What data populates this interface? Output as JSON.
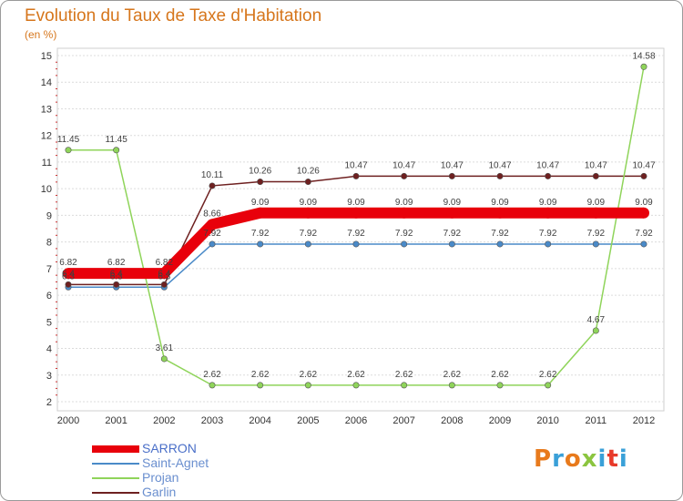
{
  "chart_data": {
    "type": "line",
    "title": "Evolution du Taux de Taxe d'Habitation",
    "subtitle": "(en %)",
    "xlabel": "",
    "ylabel": "",
    "x": [
      "2000",
      "2001",
      "2002",
      "2003",
      "2004",
      "2005",
      "2006",
      "2007",
      "2008",
      "2009",
      "2010",
      "2011",
      "2012"
    ],
    "ylim": [
      2,
      15
    ],
    "yticks": [
      "2",
      "3",
      "4",
      "5",
      "6",
      "7",
      "8",
      "9",
      "10",
      "11",
      "12",
      "13",
      "14",
      "15"
    ],
    "grid": "horizontal",
    "legend_position": "bottom-left",
    "series": [
      {
        "name": "SARRON",
        "color": "#e8000b",
        "values": [
          6.82,
          6.82,
          6.82,
          8.66,
          9.09,
          9.09,
          9.09,
          9.09,
          9.09,
          9.09,
          9.09,
          9.09,
          9.09
        ],
        "labels": [
          "6.82",
          "6.82",
          "6.82",
          "8.66",
          "9.09",
          "9.09",
          "9.09",
          "9.09",
          "9.09",
          "9.09",
          "9.09",
          "9.09",
          "9.09"
        ]
      },
      {
        "name": "Saint-Agnet",
        "color": "#4a8ac8",
        "values": [
          6.3,
          6.3,
          6.3,
          7.92,
          7.92,
          7.92,
          7.92,
          7.92,
          7.92,
          7.92,
          7.92,
          7.92,
          7.92
        ],
        "labels": [
          "6.3",
          "6.3",
          "6.3",
          "7.92",
          "7.92",
          "7.92",
          "7.92",
          "7.92",
          "7.92",
          "7.92",
          "7.92",
          "7.92",
          "7.92"
        ]
      },
      {
        "name": "Projan",
        "color": "#8fd45a",
        "values": [
          11.45,
          11.45,
          3.61,
          2.62,
          2.62,
          2.62,
          2.62,
          2.62,
          2.62,
          2.62,
          2.62,
          4.67,
          14.58
        ],
        "labels": [
          "11.45",
          "11.45",
          "3.61",
          "2.62",
          "2.62",
          "2.62",
          "2.62",
          "2.62",
          "2.62",
          "2.62",
          "2.62",
          "4.67",
          "14.58"
        ]
      },
      {
        "name": "Garlin",
        "color": "#6e2020",
        "values": [
          6.4,
          6.4,
          6.4,
          10.11,
          10.26,
          10.26,
          10.47,
          10.47,
          10.47,
          10.47,
          10.47,
          10.47,
          10.47
        ],
        "labels": [
          "6.4",
          "6.4",
          "6.4",
          "10.11",
          "10.26",
          "10.26",
          "10.47",
          "10.47",
          "10.47",
          "10.47",
          "10.47",
          "10.47",
          "10.47"
        ]
      }
    ]
  },
  "logo": {
    "text": "Proxiti",
    "letter_colors": [
      "#e87a1c",
      "#3aa0d8",
      "#e87a1c",
      "#8bc53f",
      "#3aa0d8",
      "#e83a2a",
      "#3aa0d8"
    ]
  }
}
